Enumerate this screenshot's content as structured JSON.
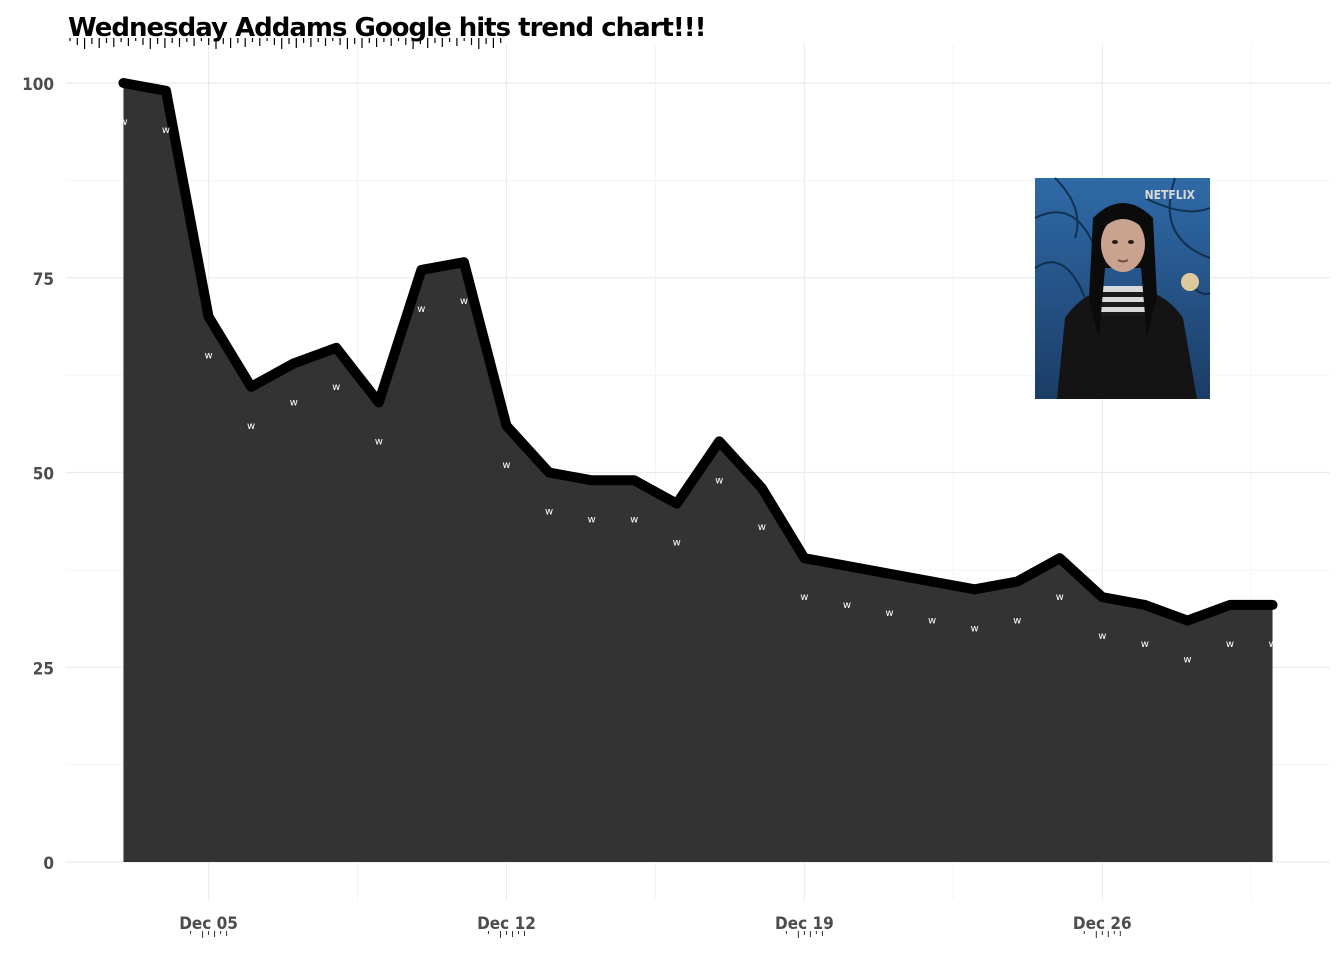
{
  "chart_data": {
    "type": "area",
    "title": "Wednesday Addams Google hits trend chart!!!",
    "xlabel": "",
    "ylabel": "",
    "x_start": "2022-12-03",
    "x_end": "2022-12-30",
    "x_dates": [
      "2022-12-03",
      "2022-12-04",
      "2022-12-05",
      "2022-12-06",
      "2022-12-07",
      "2022-12-08",
      "2022-12-09",
      "2022-12-10",
      "2022-12-11",
      "2022-12-12",
      "2022-12-13",
      "2022-12-14",
      "2022-12-15",
      "2022-12-16",
      "2022-12-17",
      "2022-12-18",
      "2022-12-19",
      "2022-12-20",
      "2022-12-21",
      "2022-12-22",
      "2022-12-23",
      "2022-12-24",
      "2022-12-25",
      "2022-12-26",
      "2022-12-27",
      "2022-12-28",
      "2022-12-29",
      "2022-12-30"
    ],
    "values": [
      100,
      99,
      70,
      61,
      64,
      66,
      59,
      76,
      77,
      56,
      50,
      49,
      49,
      46,
      54,
      48,
      39,
      38,
      37,
      36,
      35,
      36,
      39,
      34,
      33,
      31,
      33,
      33
    ],
    "point_label": "w",
    "ylim": [
      0,
      100
    ],
    "y_ticks": [
      0,
      25,
      50,
      75,
      100
    ],
    "y_tick_labels": [
      "0",
      "25",
      "50",
      "75",
      "100"
    ],
    "x_ticks": [
      "2022-12-05",
      "2022-12-12",
      "2022-12-19",
      "2022-12-26"
    ],
    "x_tick_labels": [
      "Dec 05",
      "Dec 12",
      "Dec 19",
      "Dec 26"
    ],
    "grid": true,
    "legend": "none",
    "colors": {
      "area": "#333333",
      "line": "#000000",
      "label": "#ffffff"
    }
  },
  "inset_image": {
    "description_icon": "portrait-photo",
    "watermark": "NETFLIX"
  }
}
